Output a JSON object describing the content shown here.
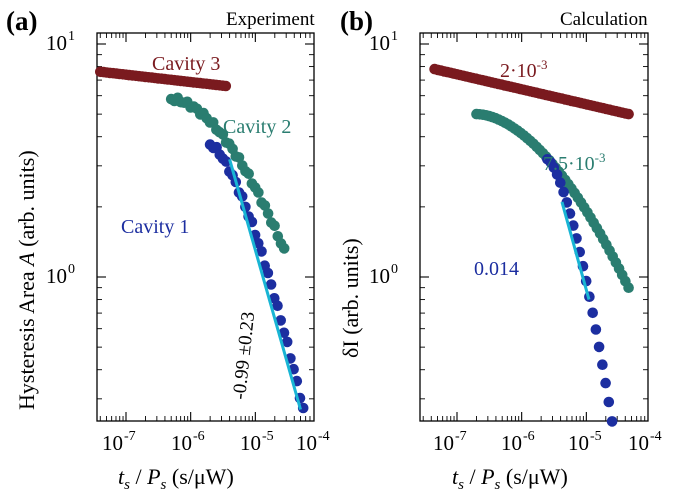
{
  "chart_data": [
    {
      "panel": "(a)",
      "title": "Experiment",
      "type": "scatter",
      "log_x": true,
      "log_y": true,
      "xlim": [
        3e-08,
        0.0001
      ],
      "ylim": [
        0.25,
        11
      ],
      "xlabel": "t_s / P_s (s/µW)",
      "ylabel": "Hysteresis Area A (arb. units)",
      "x_ticks": [
        {
          "base": "10",
          "exp": "-7",
          "value": 1e-07
        },
        {
          "base": "10",
          "exp": "-6",
          "value": 1e-06
        },
        {
          "base": "10",
          "exp": "-5",
          "value": 1e-05
        },
        {
          "base": "10",
          "exp": "-4",
          "value": 0.0001
        }
      ],
      "y_ticks": [
        {
          "base": "10",
          "exp": "0",
          "value": 1
        },
        {
          "base": "10",
          "exp": "1",
          "value": 10
        }
      ],
      "series": [
        {
          "name": "Cavity 3",
          "color": "#7a1a1f",
          "x_range": [
            4e-08,
            3.5e-06
          ],
          "y_range": [
            7.6,
            6.6
          ]
        },
        {
          "name": "Cavity 2",
          "color": "#2a7d70",
          "x_range": [
            5e-07,
            2.8e-05
          ],
          "y_range": [
            5.8,
            1.3
          ]
        },
        {
          "name": "Cavity 1",
          "color": "#1c2ea0",
          "x_range": [
            2e-06,
            5.5e-05
          ],
          "y_range": [
            3.7,
            0.27
          ]
        }
      ],
      "fit_line": {
        "label": "-0.99 ±0.23",
        "color": "#19b5d4",
        "x_range": [
          4e-06,
          5e-05
        ],
        "y_range": [
          3.2,
          0.27
        ]
      }
    },
    {
      "panel": "(b)",
      "title": "Calculation",
      "type": "scatter",
      "log_x": true,
      "log_y": true,
      "xlim": [
        3e-08,
        0.0001
      ],
      "ylim": [
        0.25,
        11
      ],
      "xlabel": "t_s / P_s (s/µW)",
      "ylabel": "δI (arb. units)",
      "x_ticks": [
        {
          "base": "10",
          "exp": "-7",
          "value": 1e-07
        },
        {
          "base": "10",
          "exp": "-6",
          "value": 1e-06
        },
        {
          "base": "10",
          "exp": "-5",
          "value": 1e-05
        },
        {
          "base": "10",
          "exp": "-4",
          "value": 0.0001
        }
      ],
      "y_ticks": [
        {
          "base": "10",
          "exp": "0",
          "value": 1
        },
        {
          "base": "10",
          "exp": "1",
          "value": 10
        }
      ],
      "series": [
        {
          "name": "2·10⁻³",
          "color": "#7a1a1f",
          "x_range": [
            4.5e-08,
            4.5e-05
          ],
          "y_range": [
            7.8,
            5.0
          ]
        },
        {
          "name": "7.5·10⁻³",
          "color": "#2a7d70",
          "x_range": [
            2e-07,
            4.5e-05
          ],
          "y_range": [
            5.0,
            0.9
          ]
        },
        {
          "name": "0.014",
          "color": "#1c2ea0",
          "x_range": [
            2.5e-06,
            2.5e-05
          ],
          "y_range": [
            3.2,
            0.24
          ]
        }
      ],
      "fit_line": {
        "label": "",
        "color": "#19b5d4",
        "x_range": [
          4.2e-06,
          1.1e-05
        ],
        "y_range": [
          2.1,
          0.8
        ]
      }
    }
  ],
  "text": {
    "a_letter": "(a)",
    "a_title": "Experiment",
    "a_ylabel": "Hysteresis Area A (arb. units)",
    "a_fit_label": "-0.99 ±0.23",
    "a_series_3": "Cavity 3",
    "a_series_2": "Cavity 2",
    "a_series_1": "Cavity 1",
    "b_letter": "(b)",
    "b_title": "Calculation",
    "b_ylabel": "δI  (arb. units)",
    "b_series_3": "2·10⁻³",
    "b_series_2": "7.5·10⁻³",
    "b_series_1": "0.014",
    "xlabel": "t_s / P_s (s/µW)"
  }
}
